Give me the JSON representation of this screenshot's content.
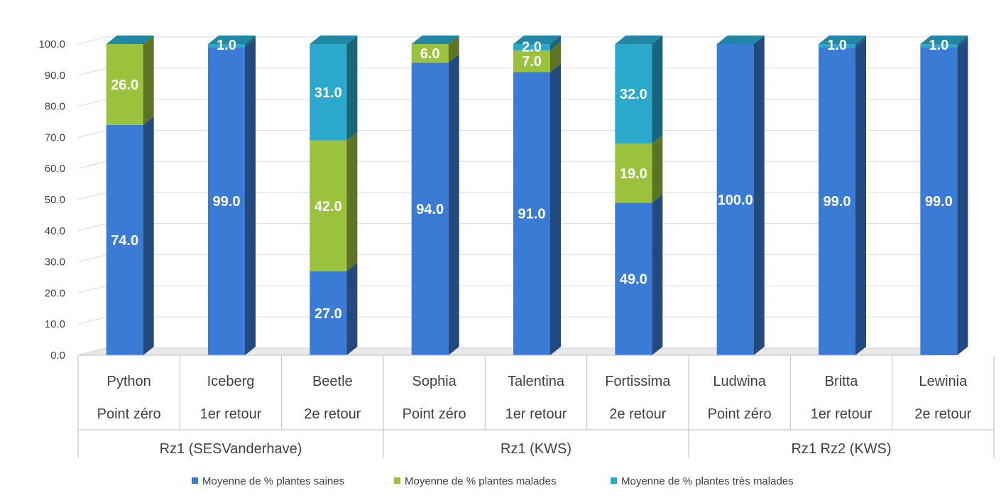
{
  "chart_data": {
    "type": "bar",
    "stacked": true,
    "three_d": true,
    "groups": [
      {
        "label": "Rz1 (SESVanderhave)",
        "span": 3
      },
      {
        "label": "Rz1 (KWS)",
        "span": 3
      },
      {
        "label": "Rz1 Rz2 (KWS)",
        "span": 3
      }
    ],
    "categories": [
      {
        "variety": "Python",
        "stage": "Point zéro"
      },
      {
        "variety": "Iceberg",
        "stage": "1er retour"
      },
      {
        "variety": "Beetle",
        "stage": "2e retour"
      },
      {
        "variety": "Sophia",
        "stage": "Point zéro"
      },
      {
        "variety": "Talentina",
        "stage": "1er retour"
      },
      {
        "variety": "Fortissima",
        "stage": "2e retour"
      },
      {
        "variety": "Ludwina",
        "stage": "Point zéro"
      },
      {
        "variety": "Britta",
        "stage": "1er retour"
      },
      {
        "variety": "Lewinia",
        "stage": "2e retour"
      }
    ],
    "series": [
      {
        "name": "Moyenne de % plantes saines",
        "color": "#3a7bd5",
        "values": [
          74.0,
          99.0,
          27.0,
          94.0,
          91.0,
          49.0,
          100.0,
          99.0,
          99.0
        ],
        "labels": [
          "74.0",
          "99.0",
          "27.0",
          "94.0",
          "91.0",
          "49.0",
          "100.0",
          "99.0",
          "99.0"
        ]
      },
      {
        "name": "Moyenne de % plantes malades",
        "color": "#9bc23c",
        "values": [
          26.0,
          0,
          42.0,
          6.0,
          7.0,
          19.0,
          0,
          0,
          0
        ],
        "labels": [
          "26.0",
          "",
          "42.0",
          "6.0",
          "7.0",
          "19.0",
          "",
          "",
          ""
        ]
      },
      {
        "name": "Moyenne de % plantes très malades",
        "color": "#2aa9cc",
        "values": [
          0,
          1.0,
          31.0,
          0,
          2.0,
          32.0,
          0,
          1.0,
          1.0
        ],
        "labels": [
          "",
          "1.0",
          "31.0",
          "",
          "2.0",
          "32.0",
          "",
          "1.0",
          "1.0"
        ]
      }
    ],
    "yticks": [
      "0.0",
      "10.0",
      "20.0",
      "30.0",
      "40.0",
      "50.0",
      "60.0",
      "70.0",
      "80.0",
      "90.0",
      "100.0"
    ],
    "ylim": [
      0,
      100
    ],
    "grid": true,
    "legend_position": "bottom"
  }
}
